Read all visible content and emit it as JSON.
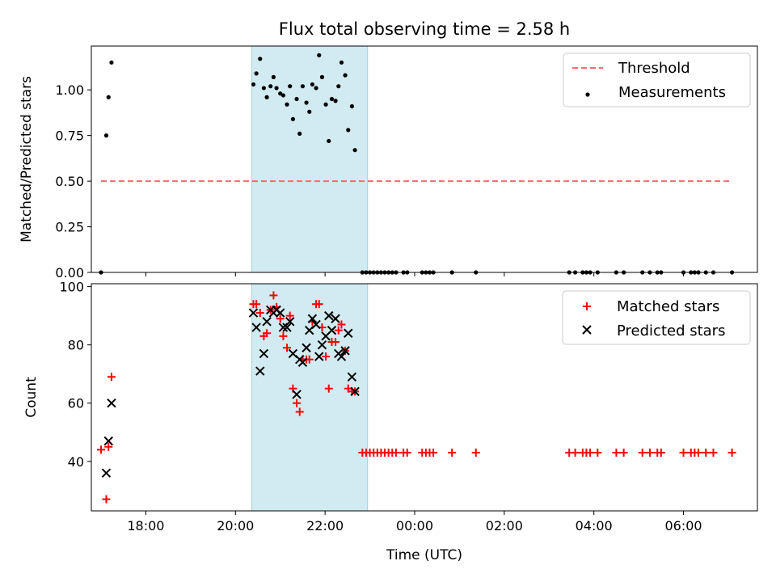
{
  "title": "Flux total observing time = 2.58 h",
  "colors": {
    "shade": "#add8e6",
    "threshold": "#ff6b6b",
    "matched": "#ff0000",
    "predicted": "#000000",
    "measurements": "#000000"
  },
  "chart_data": [
    {
      "type": "scatter",
      "ylabel": "Matched/Predicted stars",
      "ylim": [
        0,
        1.24
      ],
      "yticks": [
        0.0,
        0.25,
        0.5,
        0.75,
        1.0
      ],
      "ytick_labels": [
        "0.00",
        "0.25",
        "0.50",
        "0.75",
        "1.00"
      ],
      "xlim": [
        "16:47",
        "07:39"
      ],
      "shaded_span": [
        "20:22",
        "22:57"
      ],
      "legend_position": "top-right",
      "legend": [
        "Threshold",
        "Measurements"
      ],
      "threshold": {
        "name": "Threshold",
        "y": 0.5,
        "x_from": "17:00",
        "x_to": "07:05",
        "style": "dashed"
      },
      "series": [
        {
          "name": "Measurements",
          "marker": "dot",
          "points": [
            [
              "17:00",
              0.0
            ],
            [
              "17:07",
              0.75
            ],
            [
              "17:10",
              0.96
            ],
            [
              "17:14",
              1.15
            ],
            [
              "20:24",
              1.03
            ],
            [
              "20:28",
              1.09
            ],
            [
              "20:33",
              1.17
            ],
            [
              "20:38",
              1.01
            ],
            [
              "20:42",
              0.96
            ],
            [
              "20:47",
              1.02
            ],
            [
              "20:51",
              1.07
            ],
            [
              "20:55",
              1.01
            ],
            [
              "21:00",
              0.98
            ],
            [
              "21:04",
              0.97
            ],
            [
              "21:09",
              0.92
            ],
            [
              "21:13",
              1.02
            ],
            [
              "21:17",
              0.84
            ],
            [
              "21:22",
              0.95
            ],
            [
              "21:26",
              0.76
            ],
            [
              "21:30",
              1.02
            ],
            [
              "21:35",
              0.93
            ],
            [
              "21:39",
              0.88
            ],
            [
              "21:43",
              1.03
            ],
            [
              "21:48",
              1.01
            ],
            [
              "21:52",
              1.19
            ],
            [
              "21:56",
              1.07
            ],
            [
              "22:01",
              0.92
            ],
            [
              "22:05",
              0.72
            ],
            [
              "22:09",
              0.95
            ],
            [
              "22:14",
              0.94
            ],
            [
              "22:18",
              1.02
            ],
            [
              "22:22",
              1.15
            ],
            [
              "22:27",
              1.08
            ],
            [
              "22:31",
              0.78
            ],
            [
              "22:36",
              0.91
            ],
            [
              "22:40",
              0.67
            ],
            [
              "22:50",
              0.0
            ],
            [
              "22:55",
              0.0
            ],
            [
              "23:00",
              0.0
            ],
            [
              "23:05",
              0.0
            ],
            [
              "23:10",
              0.0
            ],
            [
              "23:15",
              0.0
            ],
            [
              "23:20",
              0.0
            ],
            [
              "23:25",
              0.0
            ],
            [
              "23:30",
              0.0
            ],
            [
              "23:35",
              0.0
            ],
            [
              "23:45",
              0.0
            ],
            [
              "23:50",
              0.0
            ],
            [
              "00:10",
              0.0
            ],
            [
              "00:15",
              0.0
            ],
            [
              "00:20",
              0.0
            ],
            [
              "00:25",
              0.0
            ],
            [
              "00:50",
              0.0
            ],
            [
              "01:22",
              0.0
            ],
            [
              "03:27",
              0.0
            ],
            [
              "03:35",
              0.0
            ],
            [
              "03:45",
              0.0
            ],
            [
              "03:50",
              0.0
            ],
            [
              "03:55",
              0.0
            ],
            [
              "04:05",
              0.0
            ],
            [
              "04:30",
              0.0
            ],
            [
              "04:40",
              0.0
            ],
            [
              "05:05",
              0.0
            ],
            [
              "05:15",
              0.0
            ],
            [
              "05:25",
              0.0
            ],
            [
              "05:30",
              0.0
            ],
            [
              "06:00",
              0.0
            ],
            [
              "06:10",
              0.0
            ],
            [
              "06:15",
              0.0
            ],
            [
              "06:20",
              0.0
            ],
            [
              "06:30",
              0.0
            ],
            [
              "06:40",
              0.0
            ],
            [
              "07:05",
              0.0
            ]
          ]
        }
      ]
    },
    {
      "type": "scatter",
      "xlabel": "Time (UTC)",
      "ylabel": "Count",
      "ylim": [
        23,
        101
      ],
      "yticks": [
        40,
        60,
        80,
        100
      ],
      "ytick_labels": [
        "40",
        "60",
        "80",
        "100"
      ],
      "xlim": [
        "16:47",
        "07:39"
      ],
      "xticks": [
        "18:00",
        "20:00",
        "22:00",
        "00:00",
        "02:00",
        "04:00",
        "06:00"
      ],
      "shaded_span": [
        "20:22",
        "22:57"
      ],
      "legend_position": "top-right",
      "legend": [
        "Matched stars",
        "Predicted stars"
      ],
      "series": [
        {
          "name": "Matched stars",
          "marker": "plus",
          "points": [
            [
              "17:00",
              44
            ],
            [
              "17:07",
              27
            ],
            [
              "17:10",
              45
            ],
            [
              "17:14",
              69
            ],
            [
              "20:24",
              94
            ],
            [
              "20:28",
              94
            ],
            [
              "20:33",
              91
            ],
            [
              "20:38",
              83
            ],
            [
              "20:42",
              84
            ],
            [
              "20:47",
              92
            ],
            [
              "20:51",
              97
            ],
            [
              "20:55",
              93
            ],
            [
              "21:00",
              89
            ],
            [
              "21:04",
              83
            ],
            [
              "21:09",
              79
            ],
            [
              "21:13",
              90
            ],
            [
              "21:17",
              65
            ],
            [
              "21:22",
              60
            ],
            [
              "21:26",
              57
            ],
            [
              "21:30",
              75
            ],
            [
              "21:35",
              75
            ],
            [
              "21:39",
              75
            ],
            [
              "21:43",
              88
            ],
            [
              "21:48",
              94
            ],
            [
              "21:52",
              94
            ],
            [
              "21:56",
              86
            ],
            [
              "22:01",
              76
            ],
            [
              "22:05",
              65
            ],
            [
              "22:09",
              81
            ],
            [
              "22:14",
              81
            ],
            [
              "22:18",
              85
            ],
            [
              "22:22",
              87
            ],
            [
              "22:27",
              78
            ],
            [
              "22:31",
              65
            ],
            [
              "22:36",
              64
            ],
            [
              "22:40",
              64
            ],
            [
              "22:50",
              43
            ],
            [
              "22:55",
              43
            ],
            [
              "23:00",
              43
            ],
            [
              "23:05",
              43
            ],
            [
              "23:10",
              43
            ],
            [
              "23:15",
              43
            ],
            [
              "23:20",
              43
            ],
            [
              "23:25",
              43
            ],
            [
              "23:30",
              43
            ],
            [
              "23:35",
              43
            ],
            [
              "23:45",
              43
            ],
            [
              "23:50",
              43
            ],
            [
              "00:10",
              43
            ],
            [
              "00:15",
              43
            ],
            [
              "00:20",
              43
            ],
            [
              "00:25",
              43
            ],
            [
              "00:50",
              43
            ],
            [
              "01:22",
              43
            ],
            [
              "03:27",
              43
            ],
            [
              "03:35",
              43
            ],
            [
              "03:45",
              43
            ],
            [
              "03:50",
              43
            ],
            [
              "03:55",
              43
            ],
            [
              "04:05",
              43
            ],
            [
              "04:30",
              43
            ],
            [
              "04:40",
              43
            ],
            [
              "05:05",
              43
            ],
            [
              "05:15",
              43
            ],
            [
              "05:25",
              43
            ],
            [
              "05:30",
              43
            ],
            [
              "06:00",
              43
            ],
            [
              "06:10",
              43
            ],
            [
              "06:15",
              43
            ],
            [
              "06:20",
              43
            ],
            [
              "06:30",
              43
            ],
            [
              "06:40",
              43
            ],
            [
              "07:05",
              43
            ]
          ]
        },
        {
          "name": "Predicted stars",
          "marker": "x",
          "points": [
            [
              "17:07",
              36
            ],
            [
              "17:10",
              47
            ],
            [
              "17:14",
              60
            ],
            [
              "20:24",
              91
            ],
            [
              "20:28",
              86
            ],
            [
              "20:33",
              71
            ],
            [
              "20:38",
              77
            ],
            [
              "20:42",
              88
            ],
            [
              "20:47",
              92
            ],
            [
              "20:51",
              91
            ],
            [
              "20:55",
              92
            ],
            [
              "21:00",
              91
            ],
            [
              "21:04",
              86
            ],
            [
              "21:09",
              86
            ],
            [
              "21:13",
              88
            ],
            [
              "21:17",
              77
            ],
            [
              "21:22",
              63
            ],
            [
              "21:26",
              75
            ],
            [
              "21:30",
              74
            ],
            [
              "21:35",
              79
            ],
            [
              "21:39",
              85
            ],
            [
              "21:43",
              89
            ],
            [
              "21:48",
              87
            ],
            [
              "21:52",
              76
            ],
            [
              "21:56",
              80
            ],
            [
              "22:01",
              83
            ],
            [
              "22:05",
              90
            ],
            [
              "22:09",
              85
            ],
            [
              "22:14",
              89
            ],
            [
              "22:18",
              77
            ],
            [
              "22:22",
              76
            ],
            [
              "22:27",
              78
            ],
            [
              "22:31",
              84
            ],
            [
              "22:36",
              69
            ],
            [
              "22:40",
              64
            ]
          ]
        }
      ]
    }
  ]
}
